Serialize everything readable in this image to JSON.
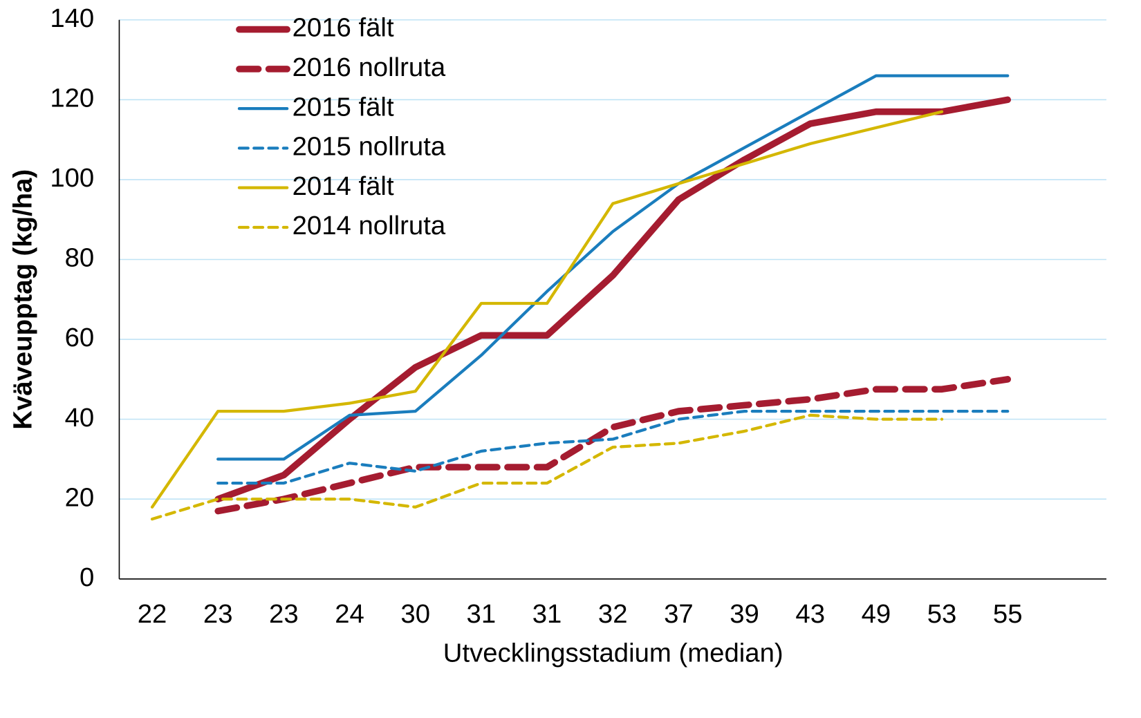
{
  "chart_data": {
    "type": "line",
    "xlabel": "Utvecklingsstadium (median)",
    "ylabel": "Kväveupptag (kg/ha)",
    "categories": [
      "22",
      "23",
      "23",
      "24",
      "30",
      "31",
      "31",
      "32",
      "37",
      "39",
      "43",
      "49",
      "53",
      "55",
      null
    ],
    "ylim": [
      0,
      140
    ],
    "yticks": [
      0,
      20,
      40,
      60,
      80,
      100,
      120,
      140
    ],
    "grid": true,
    "series": [
      {
        "name": "2016 fält",
        "color": "#a51c30",
        "line_width": 9,
        "dashed": false,
        "values": [
          null,
          20,
          26,
          40,
          53,
          61,
          61,
          76,
          95,
          105,
          114,
          117,
          117,
          120,
          null
        ]
      },
      {
        "name": "2016 nollruta",
        "color": "#a51c30",
        "line_width": 9,
        "dashed": true,
        "values": [
          null,
          17,
          20,
          24,
          28,
          28,
          28,
          38,
          42,
          43.5,
          45,
          47.5,
          47.5,
          50,
          null
        ]
      },
      {
        "name": "2015 fält",
        "color": "#1a7dbd",
        "line_width": 4,
        "dashed": false,
        "values": [
          null,
          30,
          30,
          41,
          42,
          56,
          72,
          87,
          99,
          108,
          117,
          126,
          126,
          126,
          null
        ]
      },
      {
        "name": "2015 nollruta",
        "color": "#1a7dbd",
        "line_width": 4,
        "dashed": true,
        "values": [
          null,
          24,
          24,
          29,
          27,
          32,
          34,
          35,
          40,
          42,
          42,
          42,
          42,
          42,
          null
        ]
      },
      {
        "name": "2014 fält",
        "color": "#d4b700",
        "line_width": 4,
        "dashed": false,
        "values": [
          18,
          42,
          42,
          44,
          47,
          69,
          69,
          94,
          99,
          104,
          109,
          113,
          117,
          null,
          null
        ]
      },
      {
        "name": "2014 nollruta",
        "color": "#d4b700",
        "line_width": 4,
        "dashed": true,
        "values": [
          15,
          20,
          20,
          20,
          18,
          24,
          24,
          33,
          34,
          37,
          41,
          40,
          40,
          null,
          null
        ]
      }
    ]
  }
}
